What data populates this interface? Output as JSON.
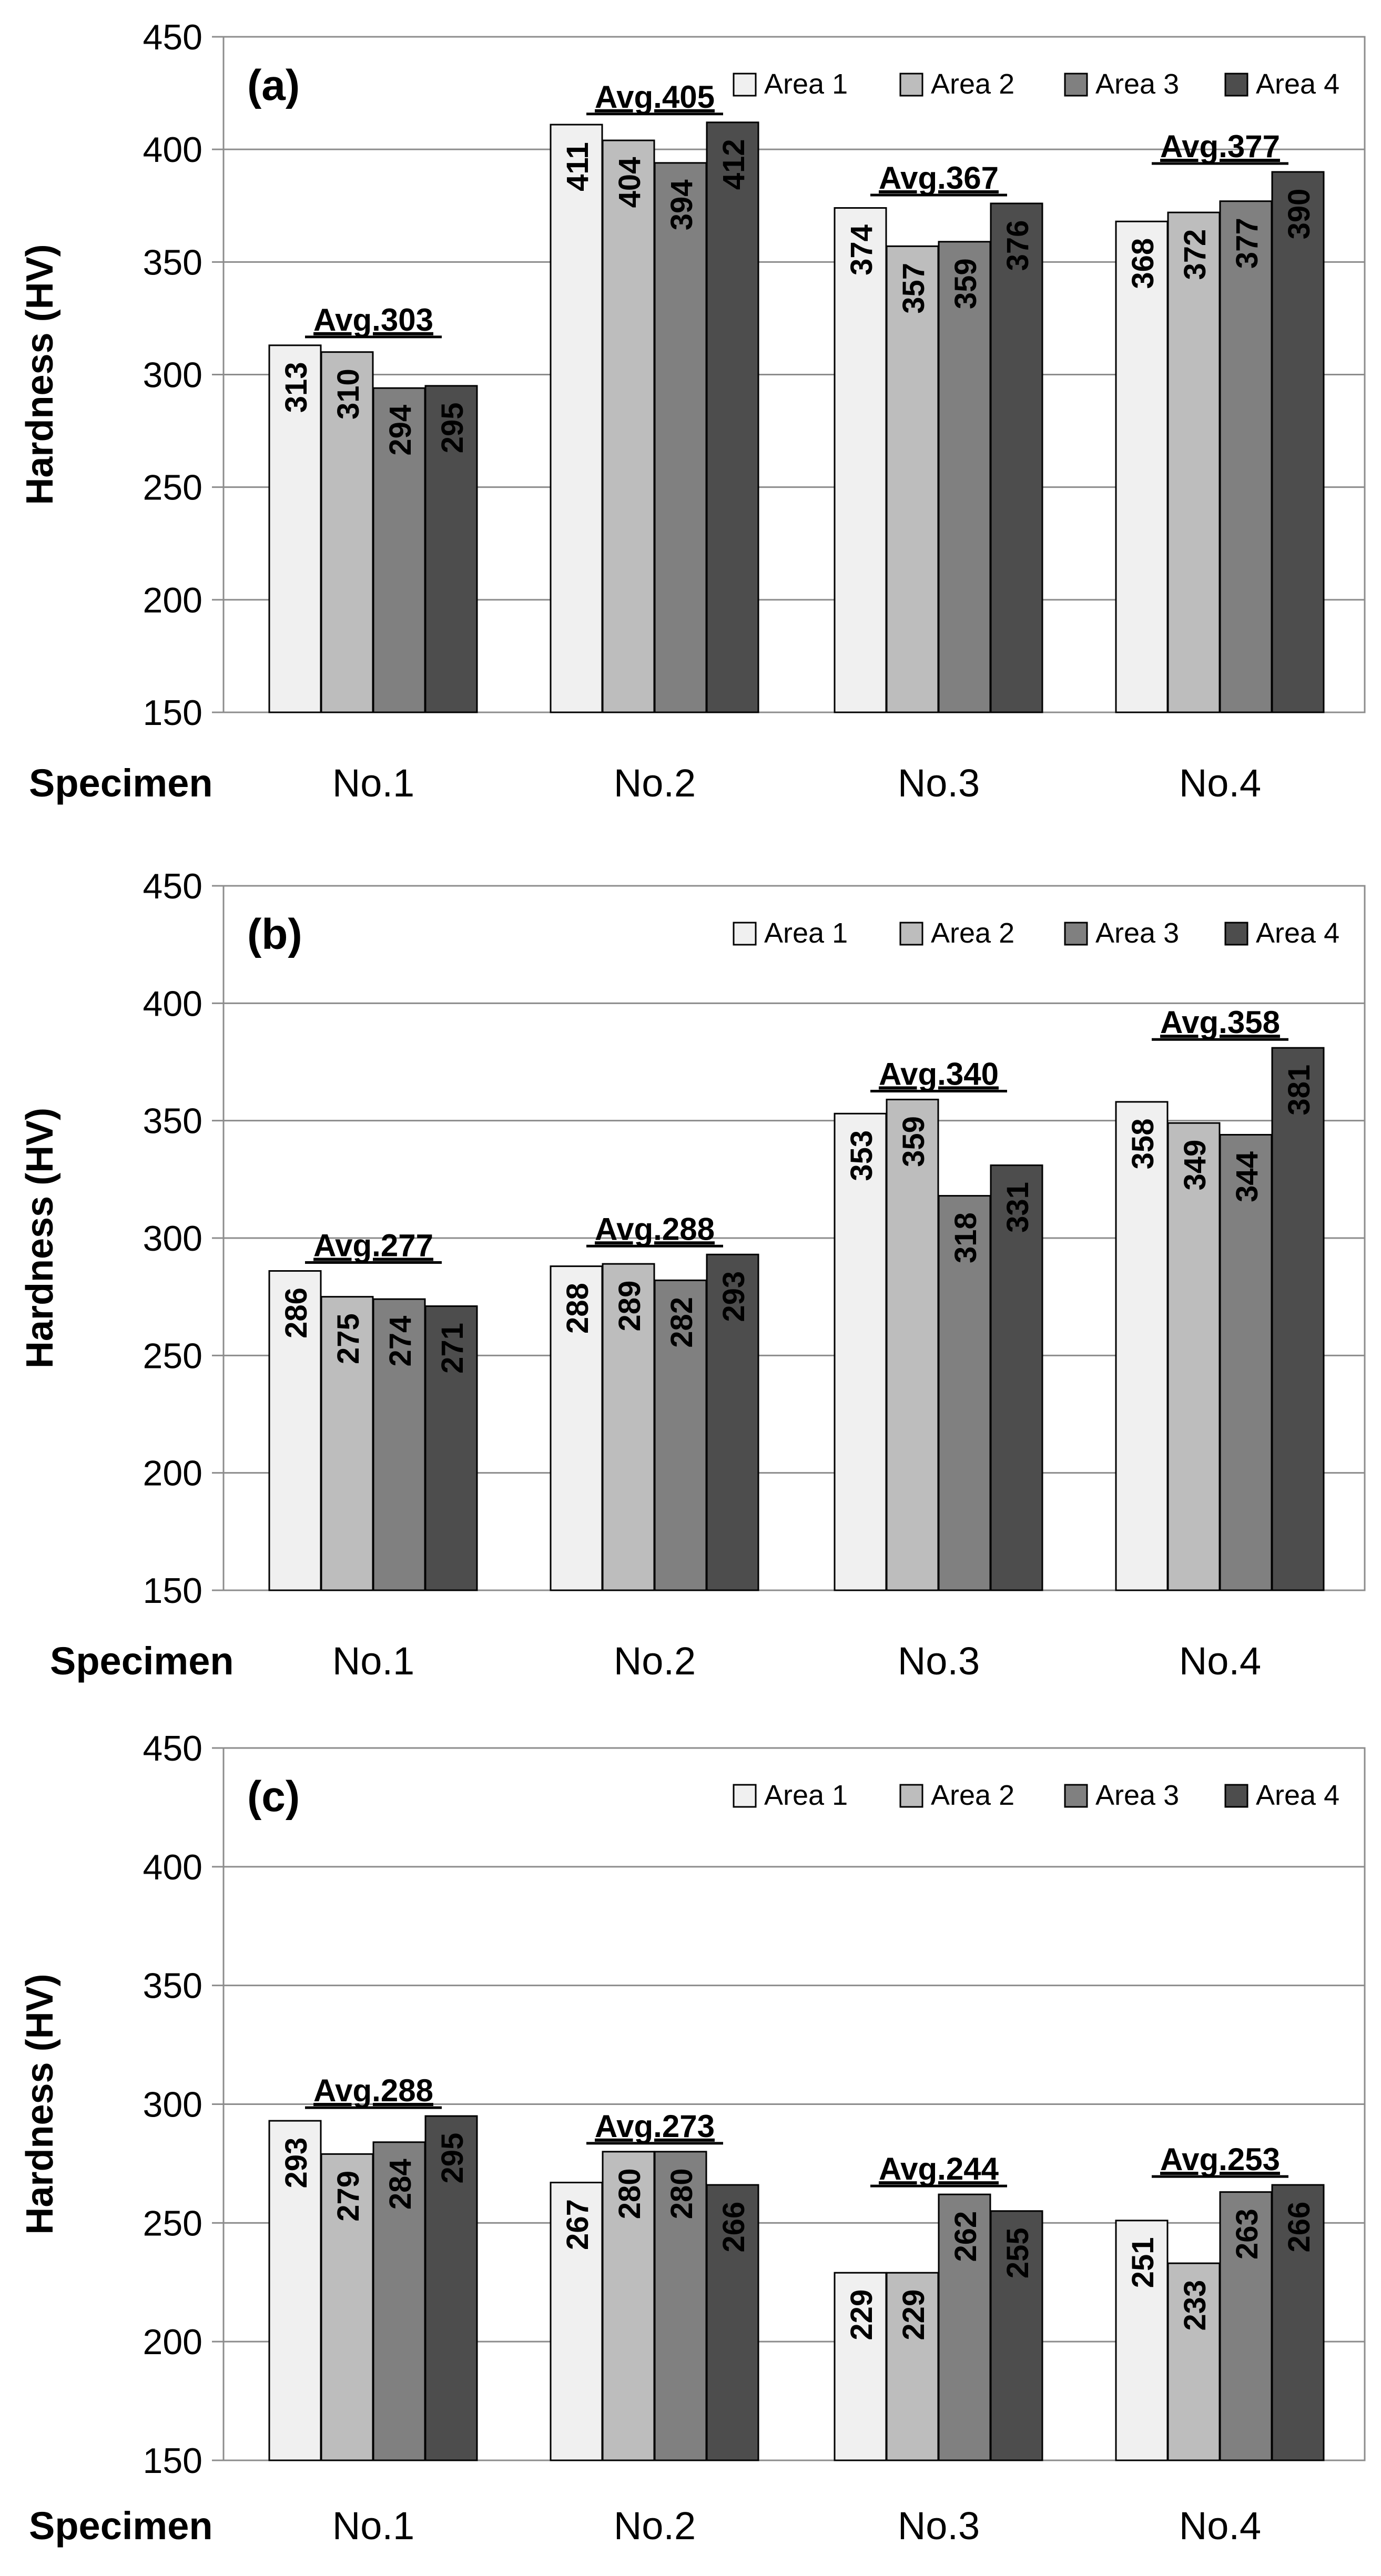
{
  "figure": {
    "category_axis_label": "Specimen",
    "legend_placement": "top-right"
  },
  "chart_data": [
    {
      "type": "bar",
      "title": "(a)",
      "xlabel": "Specimen",
      "ylabel": "Hardness (HV)",
      "ylim": [
        150,
        450
      ],
      "yticks": [
        150,
        200,
        250,
        300,
        350,
        400,
        450
      ],
      "grid": true,
      "legend": "top-right",
      "categories": [
        "No.1",
        "No.2",
        "No.3",
        "No.4"
      ],
      "series": [
        {
          "name": "Area 1",
          "color": "#f0f0f0",
          "values": [
            313,
            411,
            374,
            368
          ]
        },
        {
          "name": "Area 2",
          "color": "#bdbdbd",
          "values": [
            310,
            404,
            357,
            372
          ]
        },
        {
          "name": "Area 3",
          "color": "#808080",
          "values": [
            294,
            394,
            359,
            377
          ]
        },
        {
          "name": "Area 4",
          "color": "#4d4d4d",
          "values": [
            295,
            412,
            376,
            390
          ]
        }
      ],
      "averages": [
        "Avg.303",
        "Avg.405",
        "Avg.367",
        "Avg.377"
      ]
    },
    {
      "type": "bar",
      "title": "(b)",
      "xlabel": "Specimen",
      "ylabel": "Hardness (HV)",
      "ylim": [
        150,
        450
      ],
      "yticks": [
        150,
        200,
        250,
        300,
        350,
        400,
        450
      ],
      "grid": true,
      "legend": "top-right",
      "categories": [
        "No.1",
        "No.2",
        "No.3",
        "No.4"
      ],
      "series": [
        {
          "name": "Area 1",
          "color": "#f0f0f0",
          "values": [
            286,
            288,
            353,
            358
          ]
        },
        {
          "name": "Area 2",
          "color": "#bdbdbd",
          "values": [
            275,
            289,
            359,
            349
          ]
        },
        {
          "name": "Area 3",
          "color": "#808080",
          "values": [
            274,
            282,
            318,
            344
          ]
        },
        {
          "name": "Area 4",
          "color": "#4d4d4d",
          "values": [
            271,
            293,
            331,
            381
          ]
        }
      ],
      "averages": [
        "Avg.277",
        "Avg.288",
        "Avg.340",
        "Avg.358"
      ]
    },
    {
      "type": "bar",
      "title": "(c)",
      "xlabel": "Specimen",
      "ylabel": "Hardness (HV)",
      "ylim": [
        150,
        450
      ],
      "yticks": [
        150,
        200,
        250,
        300,
        350,
        400,
        450
      ],
      "grid": true,
      "legend": "top-right",
      "categories": [
        "No.1",
        "No.2",
        "No.3",
        "No.4"
      ],
      "series": [
        {
          "name": "Area 1",
          "color": "#f0f0f0",
          "values": [
            293,
            267,
            229,
            251
          ]
        },
        {
          "name": "Area 2",
          "color": "#bdbdbd",
          "values": [
            279,
            280,
            229,
            233
          ]
        },
        {
          "name": "Area 3",
          "color": "#808080",
          "values": [
            284,
            280,
            262,
            263
          ]
        },
        {
          "name": "Area 4",
          "color": "#4d4d4d",
          "values": [
            295,
            266,
            255,
            266
          ]
        }
      ],
      "averages": [
        "Avg.288",
        "Avg.273",
        "Avg.244",
        "Avg.253"
      ]
    }
  ]
}
